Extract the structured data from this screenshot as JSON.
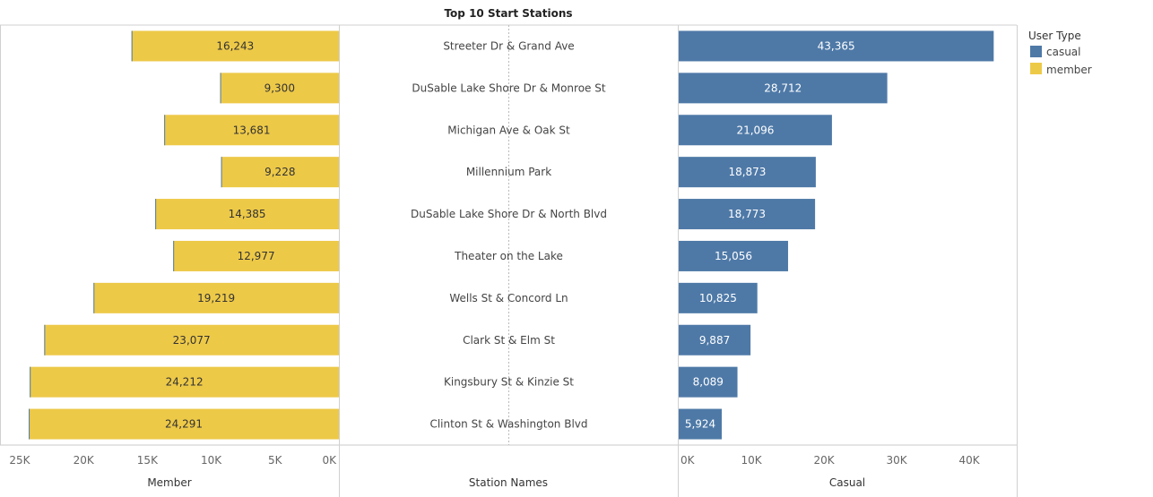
{
  "chart_data": {
    "type": "bar",
    "title": "Top 10 Start Stations",
    "categories": [
      "Streeter Dr & Grand Ave",
      "DuSable Lake Shore Dr & Monroe St",
      "Michigan Ave & Oak St",
      "Millennium Park",
      "DuSable Lake Shore Dr & North Blvd",
      "Theater on the Lake",
      "Wells St & Concord Ln",
      "Clark St & Elm St",
      "Kingsbury St & Kinzie St",
      "Clinton St & Washington Blvd"
    ],
    "categories_axis_title": "Station Names",
    "series": [
      {
        "name": "member",
        "axis_title": "Member",
        "color": "#EDC948",
        "values": [
          16243,
          9300,
          13681,
          9228,
          14385,
          12977,
          19219,
          23077,
          24212,
          24291
        ],
        "value_labels": [
          "16,243",
          "9,300",
          "13,681",
          "9,228",
          "14,385",
          "12,977",
          "19,219",
          "23,077",
          "24,212",
          "24,291"
        ],
        "xlim": [
          0,
          25700
        ],
        "reversed": true,
        "ticks": [
          25000,
          20000,
          15000,
          10000,
          5000,
          0
        ],
        "tick_labels": [
          "25K",
          "20K",
          "15K",
          "10K",
          "5K",
          "0K"
        ]
      },
      {
        "name": "casual",
        "axis_title": "Casual",
        "color": "#4E79A7",
        "values": [
          43365,
          28712,
          21096,
          18873,
          18773,
          15056,
          10825,
          9887,
          8089,
          5924
        ],
        "value_labels": [
          "43,365",
          "28,712",
          "21,096",
          "18,873",
          "18,773",
          "15,056",
          "10,825",
          "9,887",
          "8,089",
          "5,924"
        ],
        "xlim": [
          0,
          45300
        ],
        "reversed": false,
        "ticks": [
          0,
          10000,
          20000,
          30000,
          40000
        ],
        "tick_labels": [
          "0K",
          "10K",
          "20K",
          "30K",
          "40K"
        ]
      }
    ],
    "legend": {
      "title": "User Type",
      "placement": "top-right",
      "items": [
        {
          "label": "casual",
          "color": "#4E79A7"
        },
        {
          "label": "member",
          "color": "#EDC948"
        }
      ]
    },
    "grid": false
  }
}
